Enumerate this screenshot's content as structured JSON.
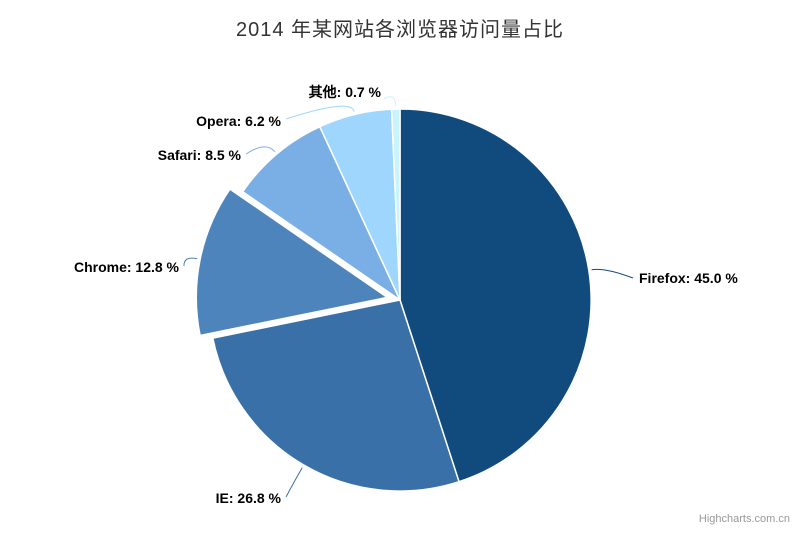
{
  "title": "2014 年某网站各浏览器访问量占比",
  "credit": "Highcharts.com.cn",
  "chart_data": {
    "type": "pie",
    "title": "2014 年某网站各浏览器访问量占比",
    "unit": "%",
    "start_angle_deg": 0,
    "direction": "clockwise",
    "legend": "none",
    "points": [
      {
        "name": "Firefox",
        "value": 45.0,
        "label": "Firefox: 45.0 %",
        "color": "#114a7d",
        "sliced": false
      },
      {
        "name": "IE",
        "value": 26.8,
        "label": "IE: 26.8 %",
        "color": "#3a70a8",
        "sliced": false
      },
      {
        "name": "Chrome",
        "value": 12.8,
        "label": "Chrome: 12.8 %",
        "color": "#4e84bc",
        "sliced": true
      },
      {
        "name": "Safari",
        "value": 8.5,
        "label": "Safari: 8.5 %",
        "color": "#7aafe5",
        "sliced": false
      },
      {
        "name": "Opera",
        "value": 6.2,
        "label": "Opera: 6.2 %",
        "color": "#9fd6fd",
        "sliced": false
      },
      {
        "name": "其他",
        "value": 0.7,
        "label": "其他: 0.7 %",
        "color": "#c9f3fd",
        "sliced": false
      }
    ]
  }
}
